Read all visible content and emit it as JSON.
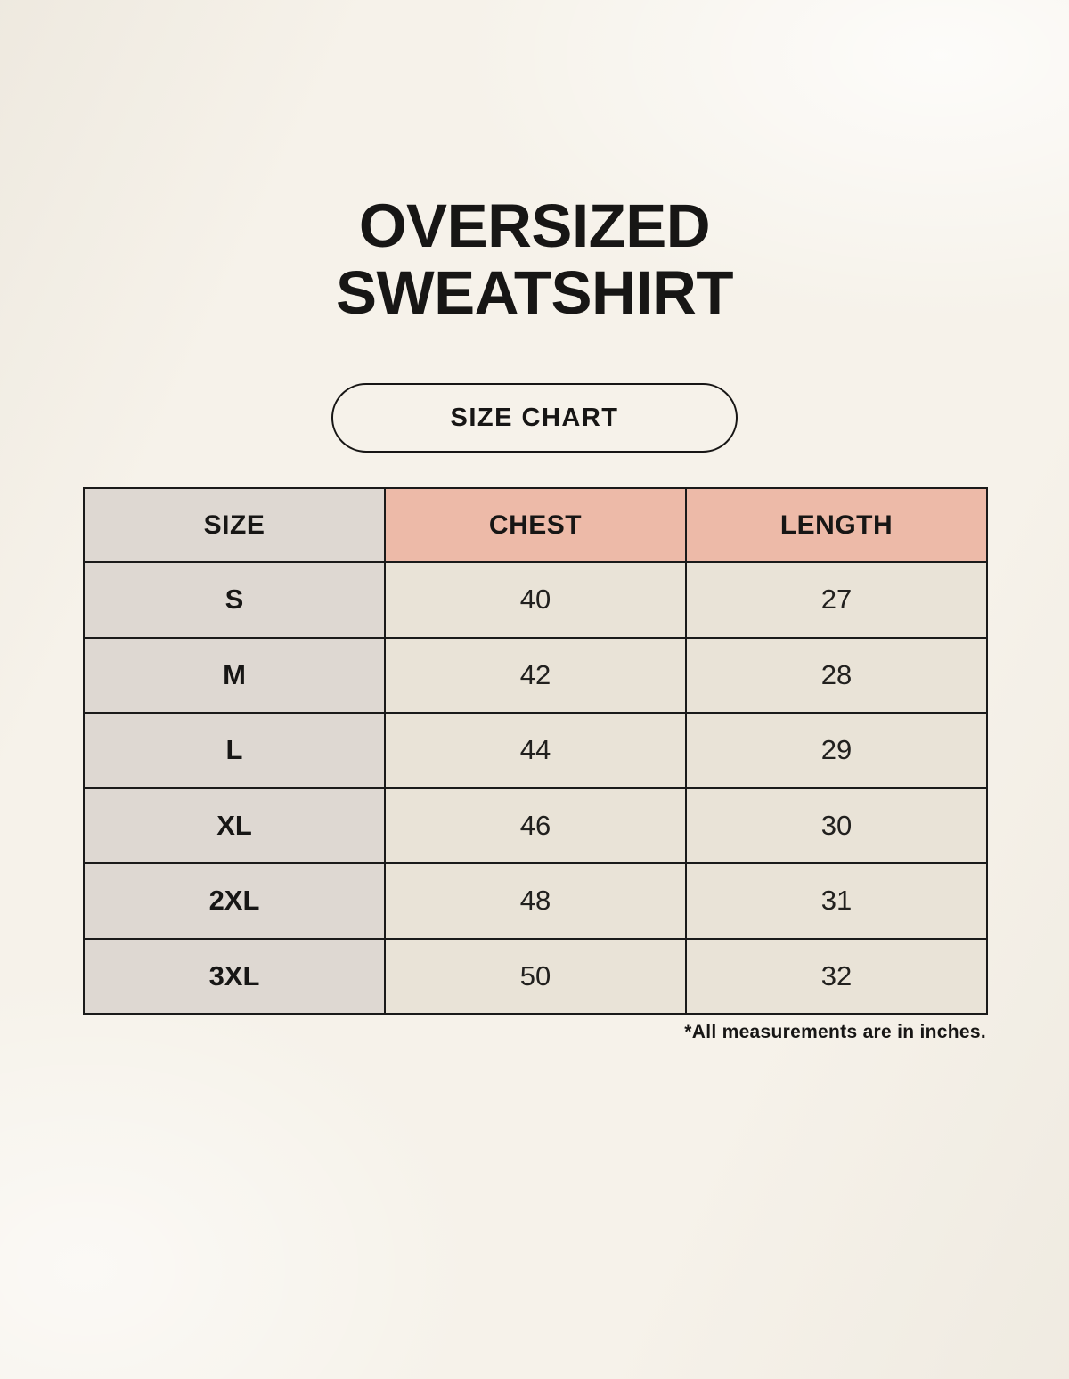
{
  "header": {
    "title_line1": "OVERSIZED",
    "title_line2": "SWEATSHIRT",
    "badge_label": "SIZE CHART"
  },
  "table": {
    "columns": [
      "SIZE",
      "CHEST",
      "LENGTH"
    ],
    "rows": [
      [
        "S",
        "40",
        "27"
      ],
      [
        "M",
        "42",
        "28"
      ],
      [
        "L",
        "44",
        "29"
      ],
      [
        "XL",
        "46",
        "30"
      ],
      [
        "2XL",
        "48",
        "31"
      ],
      [
        "3XL",
        "50",
        "32"
      ]
    ],
    "footnote": "*All measurements are in inches."
  },
  "colors": {
    "background": "#f6f2ea",
    "text": "#171615",
    "table_border": "#1a1a1a",
    "size_column_bg": "#ded8d2",
    "header_accent_bg": "#edbaa8",
    "data_cell_bg": "#e9e3d7"
  },
  "chart_data": {
    "type": "table",
    "title": "OVERSIZED SWEATSHIRT SIZE CHART",
    "columns": [
      "SIZE",
      "CHEST",
      "LENGTH"
    ],
    "rows": [
      {
        "size": "S",
        "chest": 40,
        "length": 27
      },
      {
        "size": "M",
        "chest": 42,
        "length": 28
      },
      {
        "size": "L",
        "chest": 44,
        "length": 29
      },
      {
        "size": "XL",
        "chest": 46,
        "length": 30
      },
      {
        "size": "2XL",
        "chest": 48,
        "length": 31
      },
      {
        "size": "3XL",
        "chest": 50,
        "length": 32
      }
    ],
    "units": "inches",
    "footnote": "*All measurements are in inches."
  }
}
